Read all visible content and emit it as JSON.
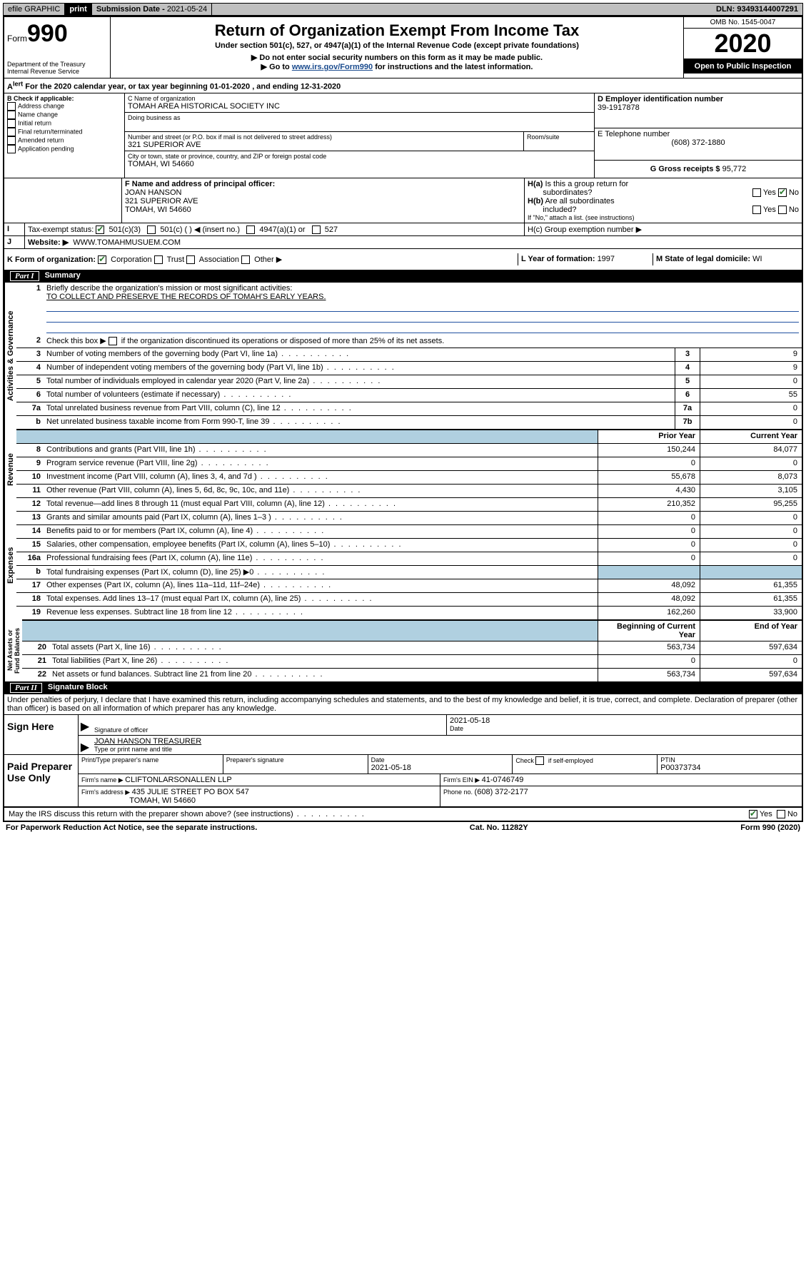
{
  "topbar": {
    "efile": "efile GRAPHIC",
    "print": "print",
    "sub_label": "Submission Date - ",
    "sub_date": "2021-05-24",
    "dln_label": "DLN: ",
    "dln": "93493144007291"
  },
  "header": {
    "form_prefix": "Form",
    "form_number": "990",
    "dept1": "Department of the Treasury",
    "dept2": "Internal Revenue Service",
    "title": "Return of Organization Exempt From Income Tax",
    "subtitle": "Under section 501(c), 527, or 4947(a)(1) of the Internal Revenue Code (except private foundations)",
    "note1": "▶ Do not enter social security numbers on this form as it may be made public.",
    "note2_pre": "▶ Go to ",
    "note2_link": "www.irs.gov/Form990",
    "note2_post": " for instructions and the latest information.",
    "omb": "OMB No. 1545-0047",
    "year": "2020",
    "open": "Open to Public Inspection"
  },
  "line_a": "For the 2020 calendar year, or tax year beginning 01-01-2020     , and ending 12-31-2020",
  "box_b": {
    "title": "B Check if applicable:",
    "opts": [
      "Address change",
      "Name change",
      "Initial return",
      "Final return/terminated",
      "Amended return",
      "Application pending"
    ]
  },
  "box_c": {
    "label": "C Name of organization",
    "name": "TOMAH AREA HISTORICAL SOCIETY INC",
    "dba": "Doing business as",
    "addr_label": "Number and street (or P.O. box if mail is not delivered to street address)",
    "addr": "321 SUPERIOR AVE",
    "room_label": "Room/suite",
    "city_label": "City or town, state or province, country, and ZIP or foreign postal code",
    "city": "TOMAH, WI  54660"
  },
  "box_d": {
    "label": "D Employer identification number",
    "ein": "39-1917878"
  },
  "box_e": {
    "label": "E Telephone number",
    "phone": "(608) 372-1880"
  },
  "box_g": {
    "label": "G Gross receipts $ ",
    "val": "95,772"
  },
  "box_f": {
    "label": "F  Name and address of principal officer:",
    "name": "JOAN HANSON",
    "addr1": "321 SUPERIOR AVE",
    "addr2": "TOMAH, WI  54660"
  },
  "box_h": {
    "a": "H(a)  Is this a group return for subordinates?",
    "b": "H(b)  Are all subordinates included?",
    "note": "If \"No,\" attach a list. (see instructions)",
    "c": "H(c)  Group exemption number ▶"
  },
  "line_i": {
    "label": "Tax-exempt status:",
    "opt1": "501(c)(3)",
    "opt2": "501(c) (   ) ◀ (insert no.)",
    "opt3": "4947(a)(1) or",
    "opt4": "527"
  },
  "line_j": {
    "label": "Website: ▶",
    "val": "WWW.TOMAHMUSUEM.COM"
  },
  "line_k": {
    "label": "K Form of organization:",
    "opts": [
      "Corporation",
      "Trust",
      "Association",
      "Other ▶"
    ],
    "l_label": "L Year of formation: ",
    "l_val": "1997",
    "m_label": "M State of legal domicile: ",
    "m_val": "WI"
  },
  "part1": {
    "num": "Part I",
    "title": "Summary"
  },
  "mission": {
    "label": "Briefly describe the organization's mission or most significant activities:",
    "text": "TO COLLECT AND PRESERVE THE RECORDS OF TOMAH'S EARLY YEARS."
  },
  "line2": "Check this box ▶      if the organization discontinued its operations or disposed of more than 25% of its net assets.",
  "summary_rows": [
    {
      "n": "3",
      "d": "Number of voting members of the governing body (Part VI, line 1a)",
      "box": "3",
      "v": "9"
    },
    {
      "n": "4",
      "d": "Number of independent voting members of the governing body (Part VI, line 1b)",
      "box": "4",
      "v": "9"
    },
    {
      "n": "5",
      "d": "Total number of individuals employed in calendar year 2020 (Part V, line 2a)",
      "box": "5",
      "v": "0"
    },
    {
      "n": "6",
      "d": "Total number of volunteers (estimate if necessary)",
      "box": "6",
      "v": "55"
    },
    {
      "n": "7a",
      "d": "Total unrelated business revenue from Part VIII, column (C), line 12",
      "box": "7a",
      "v": "0"
    },
    {
      "n": "b",
      "d": "Net unrelated business taxable income from Form 990-T, line 39",
      "box": "7b",
      "v": "0"
    }
  ],
  "col_headers": {
    "prior": "Prior Year",
    "current": "Current Year"
  },
  "revenue": [
    {
      "n": "8",
      "d": "Contributions and grants (Part VIII, line 1h)",
      "p": "150,244",
      "c": "84,077"
    },
    {
      "n": "9",
      "d": "Program service revenue (Part VIII, line 2g)",
      "p": "0",
      "c": "0"
    },
    {
      "n": "10",
      "d": "Investment income (Part VIII, column (A), lines 3, 4, and 7d )",
      "p": "55,678",
      "c": "8,073"
    },
    {
      "n": "11",
      "d": "Other revenue (Part VIII, column (A), lines 5, 6d, 8c, 9c, 10c, and 11e)",
      "p": "4,430",
      "c": "3,105"
    },
    {
      "n": "12",
      "d": "Total revenue—add lines 8 through 11 (must equal Part VIII, column (A), line 12)",
      "p": "210,352",
      "c": "95,255"
    }
  ],
  "expenses": [
    {
      "n": "13",
      "d": "Grants and similar amounts paid (Part IX, column (A), lines 1–3 )",
      "p": "0",
      "c": "0"
    },
    {
      "n": "14",
      "d": "Benefits paid to or for members (Part IX, column (A), line 4)",
      "p": "0",
      "c": "0"
    },
    {
      "n": "15",
      "d": "Salaries, other compensation, employee benefits (Part IX, column (A), lines 5–10)",
      "p": "0",
      "c": "0"
    },
    {
      "n": "16a",
      "d": "Professional fundraising fees (Part IX, column (A), line 11e)",
      "p": "0",
      "c": "0"
    },
    {
      "n": "b",
      "d": "Total fundraising expenses (Part IX, column (D), line 25) ▶0",
      "p": "",
      "c": "",
      "shaded": true
    },
    {
      "n": "17",
      "d": "Other expenses (Part IX, column (A), lines 11a–11d, 11f–24e)",
      "p": "48,092",
      "c": "61,355"
    },
    {
      "n": "18",
      "d": "Total expenses. Add lines 13–17 (must equal Part IX, column (A), line 25)",
      "p": "48,092",
      "c": "61,355"
    },
    {
      "n": "19",
      "d": "Revenue less expenses. Subtract line 18 from line 12",
      "p": "162,260",
      "c": "33,900"
    }
  ],
  "net_headers": {
    "begin": "Beginning of Current Year",
    "end": "End of Year"
  },
  "netassets": [
    {
      "n": "20",
      "d": "Total assets (Part X, line 16)",
      "p": "563,734",
      "c": "597,634"
    },
    {
      "n": "21",
      "d": "Total liabilities (Part X, line 26)",
      "p": "0",
      "c": "0"
    },
    {
      "n": "22",
      "d": "Net assets or fund balances. Subtract line 21 from line 20",
      "p": "563,734",
      "c": "597,634"
    }
  ],
  "part2": {
    "num": "Part II",
    "title": "Signature Block"
  },
  "perjury": "Under penalties of perjury, I declare that I have examined this return, including accompanying schedules and statements, and to the best of my knowledge and belief, it is true, correct, and complete. Declaration of preparer (other than officer) is based on all information of which preparer has any knowledge.",
  "sign": {
    "here": "Sign Here",
    "sig_label": "Signature of officer",
    "date": "2021-05-18",
    "date_label": "Date",
    "name": "JOAN HANSON TREASURER",
    "name_label": "Type or print name and title"
  },
  "paid": {
    "title": "Paid Preparer Use Only",
    "h1": "Print/Type preparer's name",
    "h2": "Preparer's signature",
    "h3": "Date",
    "h3v": "2021-05-18",
    "h4": "Check      if self-employed",
    "h5": "PTIN",
    "h5v": "P00373734",
    "firm_label": "Firm's name     ▶ ",
    "firm": "CLIFTONLARSONALLEN LLP",
    "ein_label": "Firm's EIN ▶ ",
    "ein": "41-0746749",
    "addr_label": "Firm's address ▶ ",
    "addr1": "435 JULIE STREET PO BOX 547",
    "addr2": "TOMAH, WI  54660",
    "phone_label": "Phone no. ",
    "phone": "(608) 372-2177"
  },
  "discuss": "May the IRS discuss this return with the preparer shown above? (see instructions)",
  "footer": {
    "left": "For Paperwork Reduction Act Notice, see the separate instructions.",
    "mid": "Cat. No. 11282Y",
    "right": "Form 990 (2020)"
  },
  "yes": "Yes",
  "no": "No"
}
